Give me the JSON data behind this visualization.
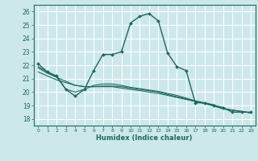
{
  "xlabel": "Humidex (Indice chaleur)",
  "bg_color": "#cce8eb",
  "grid_color": "#ffffff",
  "line_color": "#1a6b5a",
  "xlim": [
    -0.5,
    23.5
  ],
  "ylim": [
    17.5,
    26.5
  ],
  "xticks": [
    0,
    1,
    2,
    3,
    4,
    5,
    6,
    7,
    8,
    9,
    10,
    11,
    12,
    13,
    14,
    15,
    16,
    17,
    18,
    19,
    20,
    21,
    22,
    23
  ],
  "yticks": [
    18,
    19,
    20,
    21,
    22,
    23,
    24,
    25,
    26
  ],
  "line1_x": [
    0,
    1,
    2,
    3,
    4,
    5,
    6,
    7,
    8,
    9,
    10,
    11,
    12,
    13,
    14,
    15,
    16,
    17,
    18,
    19,
    20,
    21,
    22,
    23
  ],
  "line1_y": [
    22.1,
    21.5,
    21.2,
    20.2,
    19.7,
    20.2,
    21.6,
    22.8,
    22.8,
    23.0,
    25.15,
    25.65,
    25.85,
    25.3,
    22.9,
    21.9,
    21.6,
    19.2,
    19.2,
    19.0,
    18.85,
    18.5,
    18.5,
    18.5
  ],
  "line2_x": [
    0,
    1,
    2,
    3,
    4,
    5,
    6,
    7,
    8,
    9,
    10,
    11,
    12,
    13,
    14,
    15,
    16,
    17,
    18,
    19,
    20,
    21,
    22,
    23
  ],
  "line2_y": [
    21.9,
    21.5,
    21.1,
    20.2,
    20.0,
    20.2,
    20.5,
    20.6,
    20.6,
    20.5,
    20.35,
    20.25,
    20.15,
    20.05,
    19.9,
    19.75,
    19.55,
    19.35,
    19.2,
    19.05,
    18.75,
    18.65,
    18.55,
    18.45
  ],
  "line3_x": [
    0,
    1,
    2,
    3,
    4,
    5,
    6,
    7,
    8,
    9,
    10,
    11,
    12,
    13,
    14,
    15,
    16,
    17,
    18,
    19,
    20,
    21,
    22,
    23
  ],
  "line3_y": [
    21.5,
    21.2,
    20.9,
    20.7,
    20.5,
    20.4,
    20.4,
    20.4,
    20.4,
    20.3,
    20.2,
    20.1,
    20.0,
    19.9,
    19.75,
    19.6,
    19.45,
    19.3,
    19.15,
    19.0,
    18.8,
    18.65,
    18.55,
    18.45
  ],
  "line4_x": [
    0,
    1,
    2,
    3,
    4,
    5,
    6,
    7,
    8,
    9,
    10,
    11,
    12,
    13,
    14,
    15,
    16,
    17,
    18,
    19,
    20,
    21,
    22,
    23
  ],
  "line4_y": [
    21.8,
    21.4,
    21.1,
    20.8,
    20.5,
    20.4,
    20.4,
    20.45,
    20.45,
    20.4,
    20.3,
    20.2,
    20.1,
    20.0,
    19.82,
    19.65,
    19.5,
    19.3,
    19.15,
    18.95,
    18.75,
    18.65,
    18.55,
    18.45
  ]
}
